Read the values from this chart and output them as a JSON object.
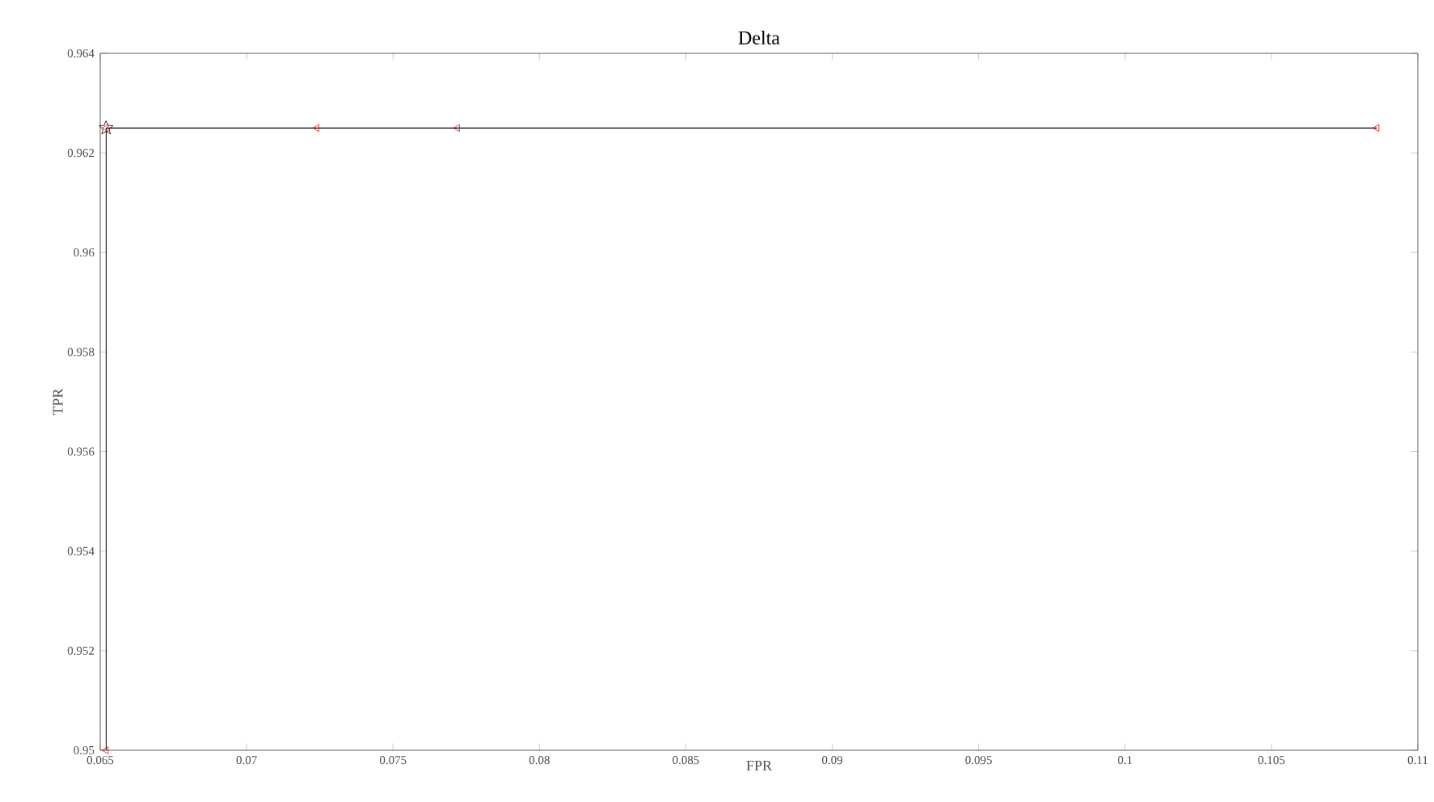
{
  "chart_data": {
    "type": "line",
    "title": "Delta",
    "xlabel": "FPR",
    "ylabel": "TPR",
    "x": [
      0.0652,
      0.0652,
      0.0724,
      0.0772,
      0.1086
    ],
    "series": [
      {
        "color": "#000000",
        "marker": "none",
        "values": [
          0.95,
          0.9625,
          0.9625,
          0.9625,
          0.9625
        ]
      },
      {
        "type": "scatter",
        "color": "#ff0000",
        "marker": "triangle",
        "values": [
          0.95,
          0.9625,
          0.9625,
          0.9625,
          0.9625
        ]
      },
      {
        "type": "scatter",
        "color": "#000000",
        "marker": "star",
        "x": [
          0.0652
        ],
        "values": [
          0.9625
        ]
      }
    ],
    "xlim": [
      0.065,
      0.11
    ],
    "ylim": [
      0.95,
      0.964
    ],
    "xticks": [
      0.065,
      0.07,
      0.075,
      0.08,
      0.085,
      0.09,
      0.095,
      0.1,
      0.105,
      0.11
    ],
    "yticks": [
      0.95,
      0.952,
      0.954,
      0.956,
      0.958,
      0.96,
      0.962,
      0.964
    ],
    "grid": false
  }
}
